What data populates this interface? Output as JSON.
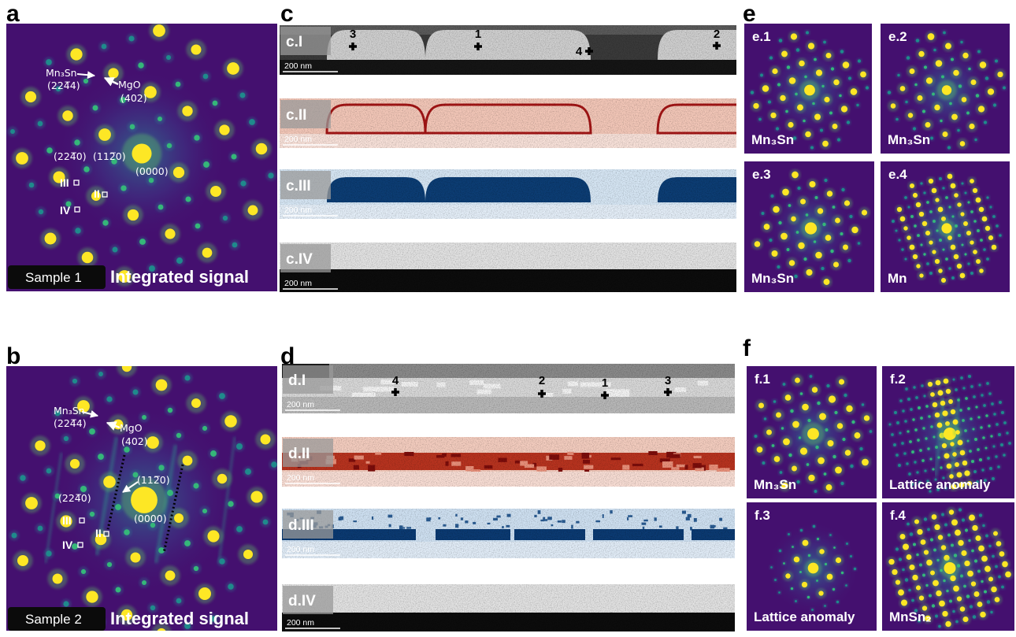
{
  "panel_a": {
    "label": "a",
    "annotations": {
      "phase": "Mn₃Sn",
      "phase_index": "(224̅4)",
      "substrate": "MgO",
      "substrate_index": "(402)",
      "spot_1": "(224̅0)",
      "spot_2": "(112̅0)",
      "spot_0": "(0000)",
      "roi_3": "III",
      "roi_2": "II",
      "roi_4": "IV"
    },
    "sample": "Sample 1",
    "signal": "Integrated signal"
  },
  "panel_b": {
    "label": "b",
    "annotations": {
      "phase": "Mn₃Sn",
      "phase_index": "(224̅4)",
      "substrate": "MgO",
      "substrate_index": "(402)",
      "spot_2": "(112̅0)",
      "spot_1": "(224̅0)",
      "spot_0": "(0000)",
      "roi_3": "III",
      "roi_2": "II",
      "roi_4": "IV"
    },
    "sample": "Sample 2",
    "signal": "Integrated signal"
  },
  "panel_c": {
    "label": "c",
    "maps": [
      {
        "label": "c.I",
        "scale": "200 nm",
        "points": [
          "3",
          "1",
          "4",
          "2"
        ]
      },
      {
        "label": "c.II",
        "scale": "200 nm"
      },
      {
        "label": "c.III",
        "scale": "200 nm"
      },
      {
        "label": "c.IV",
        "scale": "200 nm"
      }
    ]
  },
  "panel_d": {
    "label": "d",
    "maps": [
      {
        "label": "d.I",
        "scale": "200 nm",
        "points": [
          "4",
          "2",
          "1",
          "3"
        ]
      },
      {
        "label": "d.II",
        "scale": "200 nm"
      },
      {
        "label": "d.III",
        "scale": "200 nm"
      },
      {
        "label": "d.IV",
        "scale": "200 nm"
      }
    ]
  },
  "panel_e": {
    "label": "e",
    "patterns": [
      {
        "label": "e.1",
        "phase": "Mn₃Sn"
      },
      {
        "label": "e.2",
        "phase": "Mn₃Sn"
      },
      {
        "label": "e.3",
        "phase": "Mn₃Sn"
      },
      {
        "label": "e.4",
        "phase": "Mn"
      }
    ]
  },
  "panel_f": {
    "label": "f",
    "patterns": [
      {
        "label": "f.1",
        "phase": "Mn₃Sn"
      },
      {
        "label": "f.2",
        "phase": "Lattice anomaly"
      },
      {
        "label": "f.3",
        "phase": "Lattice anomaly"
      },
      {
        "label": "f.4",
        "phase": "MnSn₂"
      }
    ]
  }
}
